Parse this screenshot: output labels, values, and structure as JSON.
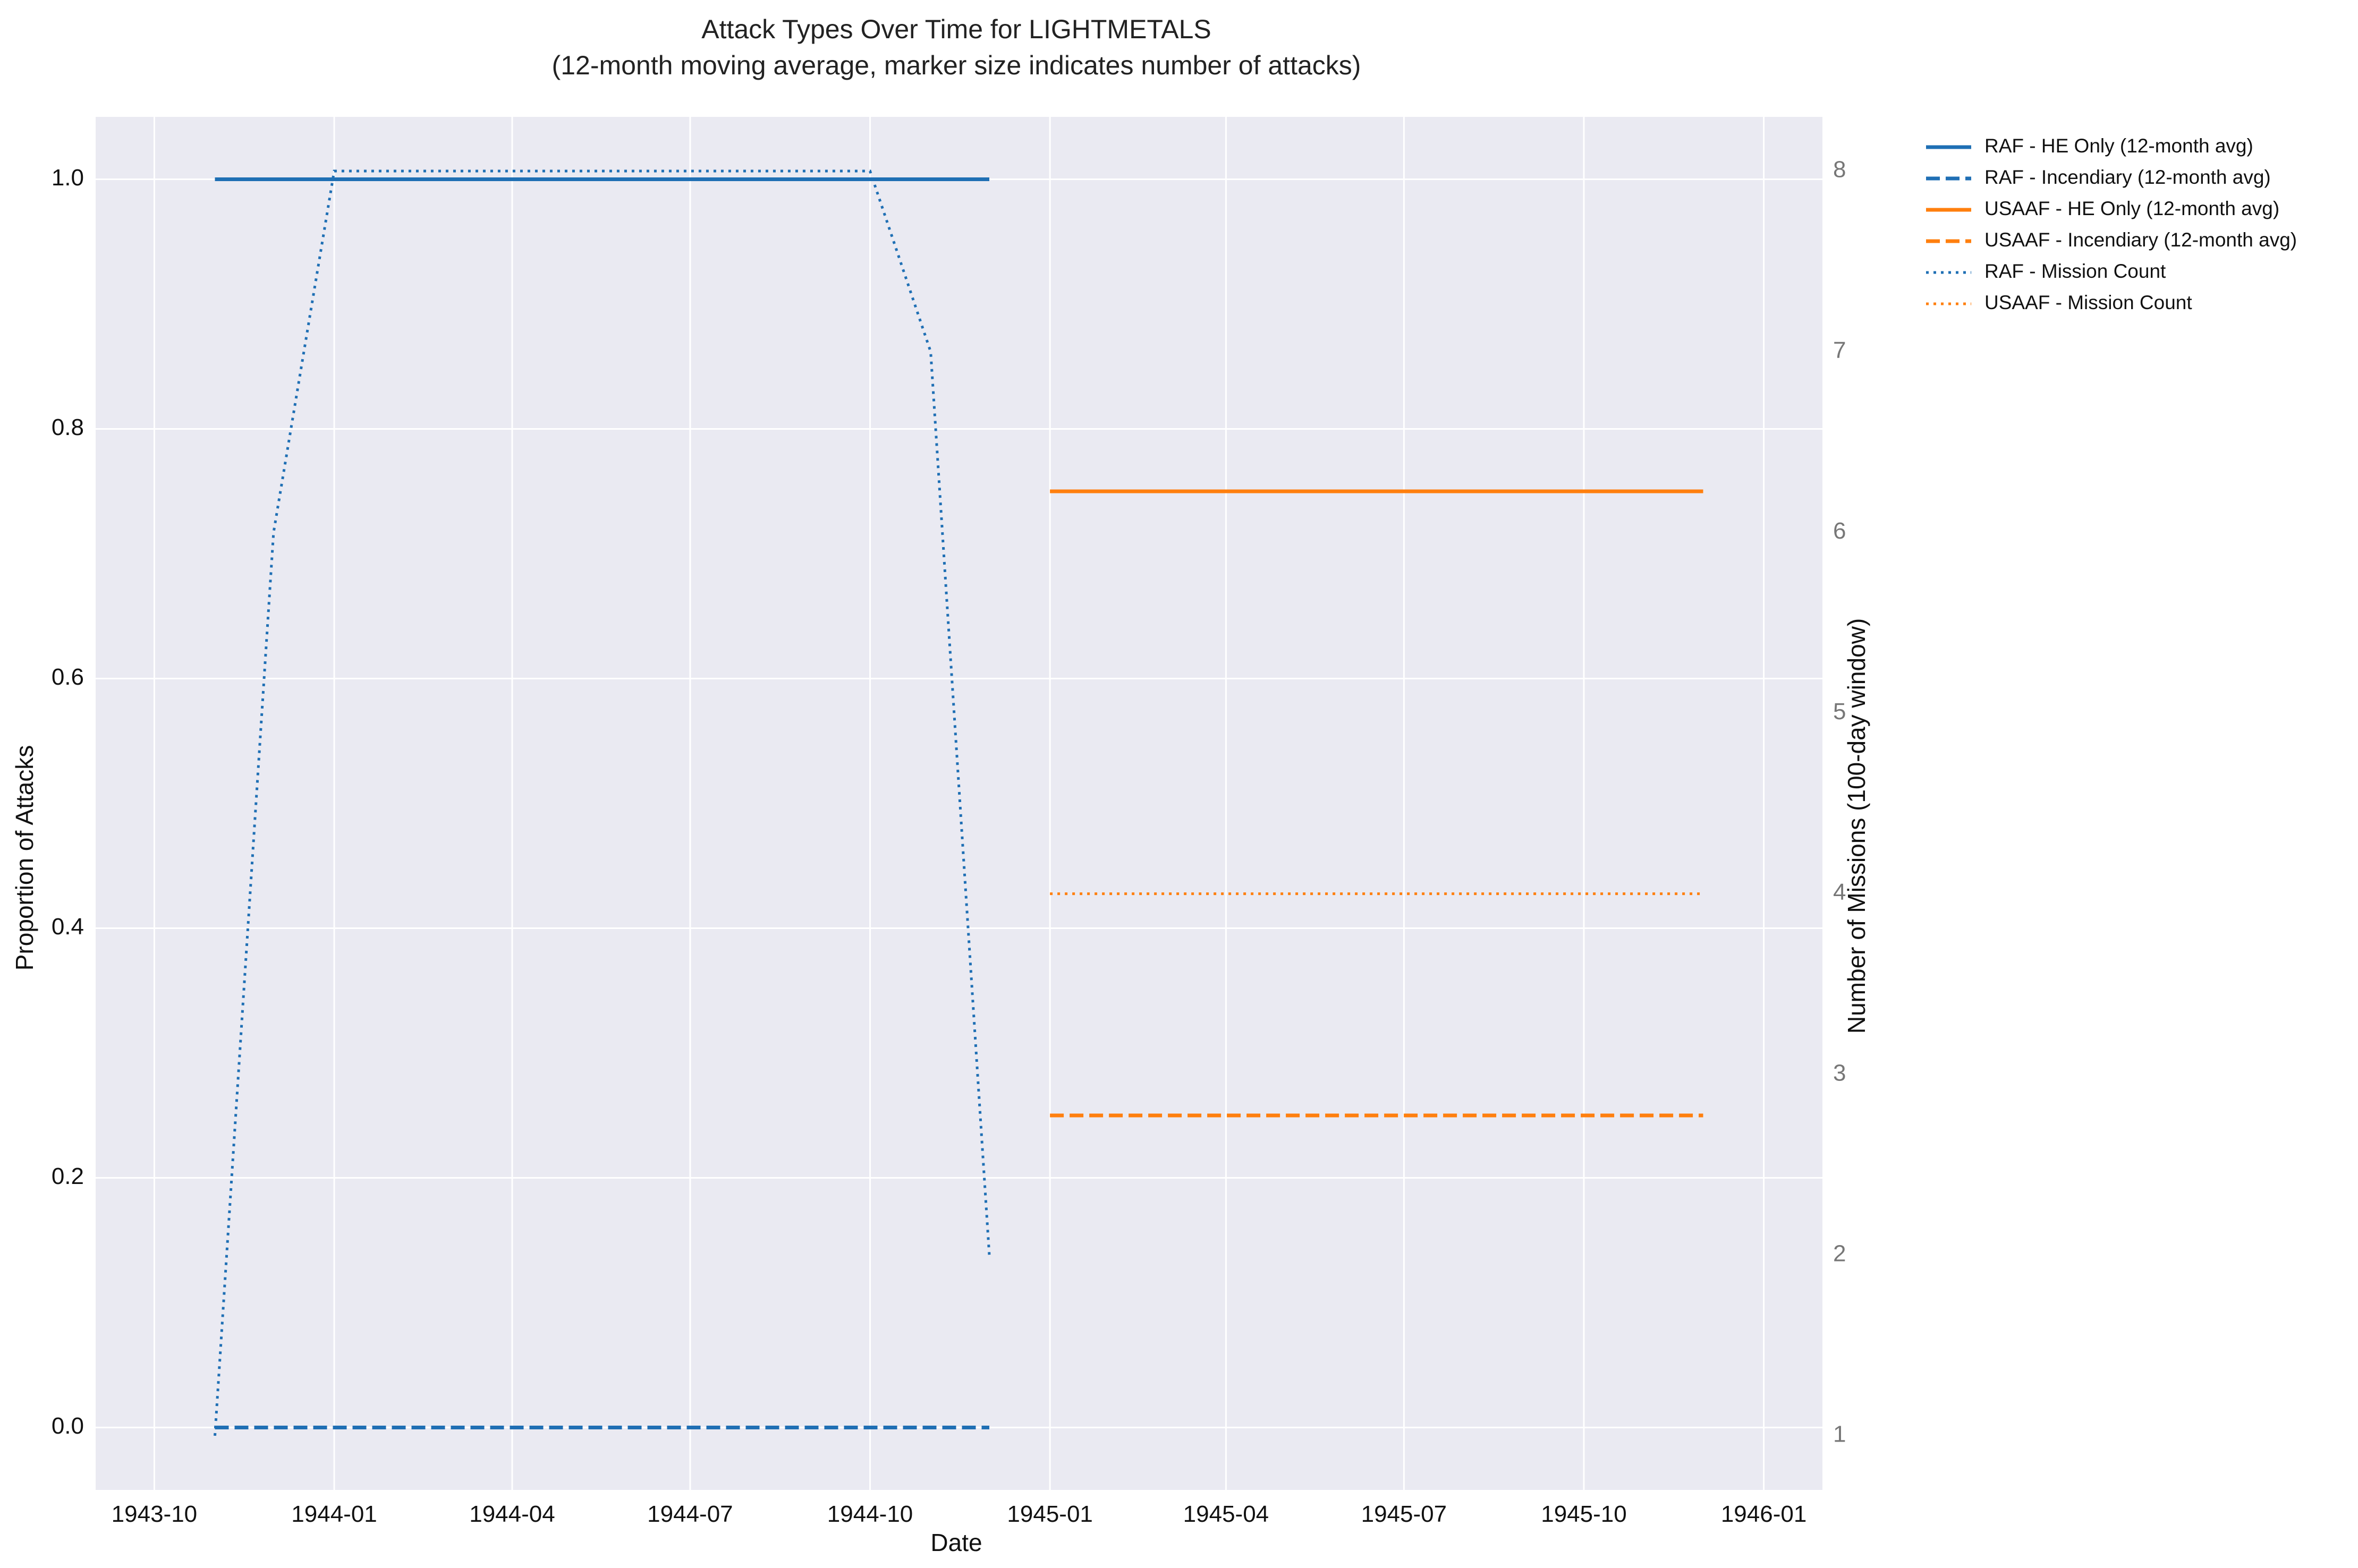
{
  "chart_data": {
    "type": "line",
    "title": "Attack Types Over Time for LIGHTMETALS",
    "subtitle": "(12-month moving average, marker size indicates number of attacks)",
    "xlabel": "Date",
    "ylabel": "Proportion of Attacks",
    "y2label": "Number of Missions (100-day window)",
    "xlim": [
      "1943-09-01",
      "1946-01-31"
    ],
    "ylim": [
      -0.05,
      1.05
    ],
    "y2lim": [
      0.7,
      8.3
    ],
    "x_ticks": [
      "1943-10",
      "1944-01",
      "1944-04",
      "1944-07",
      "1944-10",
      "1945-01",
      "1945-04",
      "1945-07",
      "1945-10",
      "1946-01"
    ],
    "y_ticks": [
      "0.0",
      "0.2",
      "0.4",
      "0.6",
      "0.8",
      "1.0"
    ],
    "y2_ticks": [
      "1",
      "2",
      "3",
      "4",
      "5",
      "6",
      "7",
      "8"
    ],
    "grid": true,
    "legend_position": "outside-top-right",
    "colors": {
      "raf": "#1f6fb4",
      "usaaf": "#ff7f0e",
      "plot_bg": "#eaeaf2",
      "grid": "#ffffff"
    },
    "series": [
      {
        "name": "RAF - HE Only (12-month avg)",
        "axis": "left",
        "color": "#1f6fb4",
        "style": "solid",
        "x": [
          "1943-11-01",
          "1944-12-01"
        ],
        "y": [
          1.0,
          1.0
        ]
      },
      {
        "name": "RAF - Incendiary (12-month avg)",
        "axis": "left",
        "color": "#1f6fb4",
        "style": "dashed",
        "x": [
          "1943-11-01",
          "1944-12-01"
        ],
        "y": [
          0.0,
          0.0
        ]
      },
      {
        "name": "USAAF - HE Only (12-month avg)",
        "axis": "left",
        "color": "#ff7f0e",
        "style": "solid",
        "x": [
          "1945-01-01",
          "1945-12-01"
        ],
        "y": [
          0.75,
          0.75
        ]
      },
      {
        "name": "USAAF - Incendiary (12-month avg)",
        "axis": "left",
        "color": "#ff7f0e",
        "style": "dashed",
        "x": [
          "1945-01-01",
          "1945-12-01"
        ],
        "y": [
          0.25,
          0.25
        ]
      },
      {
        "name": "RAF - Mission Count",
        "axis": "right",
        "color": "#1f6fb4",
        "style": "dotted",
        "x": [
          "1943-11-01",
          "1943-12-01",
          "1944-01-01",
          "1944-10-01",
          "1944-11-01",
          "1944-12-01"
        ],
        "y": [
          1,
          6,
          8,
          8,
          7,
          2
        ]
      },
      {
        "name": "USAAF - Mission Count",
        "axis": "right",
        "color": "#ff7f0e",
        "style": "dotted",
        "x": [
          "1945-01-01",
          "1945-12-01"
        ],
        "y": [
          4,
          4
        ]
      }
    ]
  }
}
